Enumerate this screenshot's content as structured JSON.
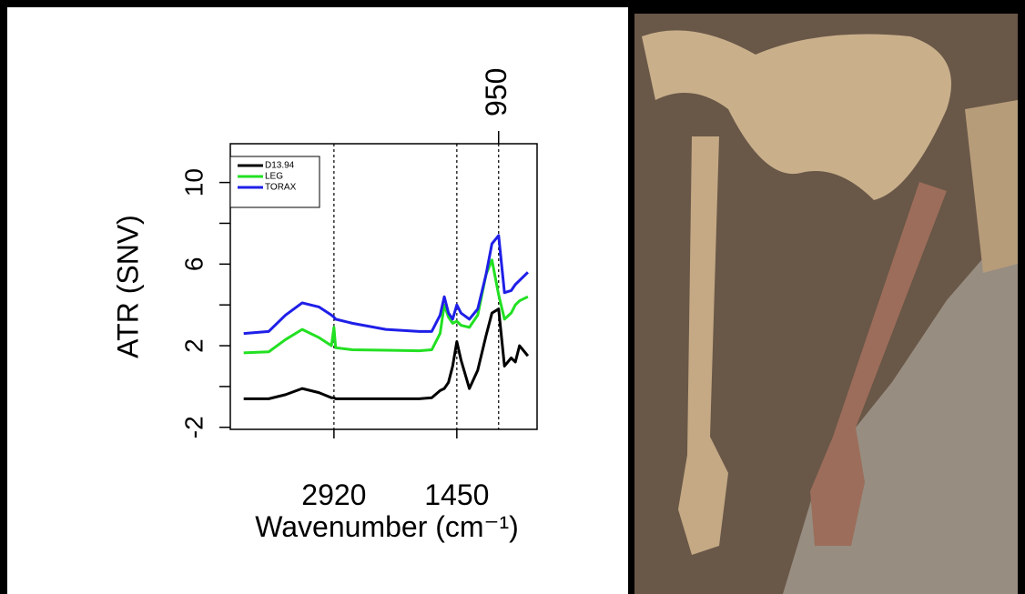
{
  "chart_data": {
    "type": "line",
    "ylabel": "ATR (SNV)",
    "xlabel": "Wavenumber (cm⁻¹)",
    "x": [
      4000,
      3700,
      3500,
      3300,
      3100,
      2950,
      2920,
      2900,
      2700,
      2300,
      1900,
      1750,
      1650,
      1600,
      1550,
      1500,
      1450,
      1400,
      1300,
      1200,
      1100,
      1030,
      950,
      880,
      800,
      750,
      700,
      600
    ],
    "series": [
      {
        "name": "D13.94",
        "color": "#000000",
        "values": [
          -0.6,
          -0.6,
          -0.4,
          -0.1,
          -0.3,
          -0.55,
          -0.55,
          -0.6,
          -0.6,
          -0.6,
          -0.6,
          -0.55,
          -0.2,
          -0.1,
          0.2,
          1.0,
          2.2,
          1.3,
          -0.1,
          0.8,
          2.5,
          3.6,
          3.8,
          1.0,
          1.4,
          1.2,
          2.0,
          1.5
        ]
      },
      {
        "name": "LEG",
        "color": "#22e022",
        "values": [
          1.65,
          1.7,
          2.3,
          2.8,
          2.4,
          2.0,
          2.9,
          1.9,
          1.8,
          1.78,
          1.75,
          1.8,
          2.6,
          4.0,
          3.4,
          3.1,
          3.2,
          3.0,
          2.9,
          3.5,
          5.5,
          6.2,
          4.5,
          3.3,
          3.6,
          4.0,
          4.2,
          4.4
        ]
      },
      {
        "name": "TORAX",
        "color": "#1f1fe8",
        "values": [
          2.6,
          2.7,
          3.5,
          4.1,
          3.9,
          3.5,
          3.4,
          3.3,
          3.1,
          2.8,
          2.7,
          2.7,
          3.5,
          4.4,
          3.6,
          3.3,
          4.0,
          3.6,
          3.3,
          3.8,
          5.5,
          7.0,
          7.4,
          4.6,
          4.7,
          5.0,
          5.2,
          5.6
        ]
      }
    ],
    "xlim": [
      4160,
      490
    ],
    "ylim": [
      -2.1,
      11.9
    ],
    "xticks": [
      2920,
      1450
    ],
    "xticks_top": [
      950
    ],
    "vlines": [
      2920,
      1450,
      950
    ],
    "yticks": [
      -2,
      2,
      6,
      10
    ],
    "yticks_minor": [
      0,
      4,
      8
    ],
    "legend": "top-left"
  }
}
